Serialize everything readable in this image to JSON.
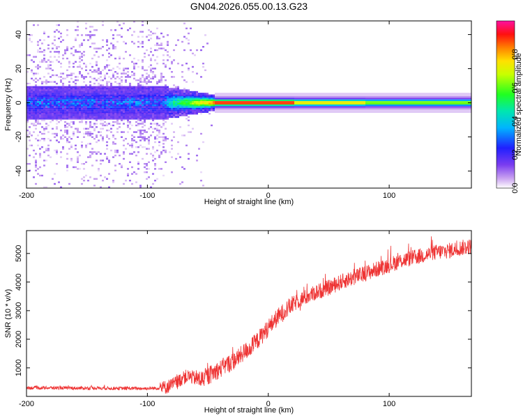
{
  "title": "GN04.2026.055.00.13.G23",
  "chart_data": [
    {
      "type": "heatmap",
      "title": "GN04.2026.055.00.13.G23",
      "xlabel": "Height of straight line (km)",
      "ylabel": "Frequency (Hz)",
      "xlim": [
        -200,
        168
      ],
      "ylim": [
        -50,
        48
      ],
      "x_ticks": [
        -200,
        -100,
        0,
        100
      ],
      "x_tick_labels": [
        "-200",
        "-100",
        "0",
        "100"
      ],
      "y_ticks": [
        -40,
        -20,
        0,
        20,
        40
      ],
      "y_tick_labels": [
        "-40",
        "-20",
        "0",
        "20",
        "40"
      ],
      "colorbar": {
        "label": "Normalized spectral amplitude",
        "range": [
          0,
          1
        ],
        "ticks": [
          0.0,
          0.2,
          0.4,
          0.6,
          0.8
        ],
        "tick_labels": [
          "0.0",
          "0.2",
          "0.4",
          "0.6",
          "0.8"
        ],
        "colormap": "rainbow (white-purple-blue-cyan-green-yellow-orange-red-magenta)"
      },
      "features": {
        "noise_region_x": [
          -200,
          -85
        ],
        "transition_x": [
          -85,
          -45
        ],
        "stable_signal_x": [
          -45,
          168
        ],
        "signal_center_hz": 0.5,
        "signal_halfwidth_hz_noise": 5,
        "signal_halfwidth_hz_stable": 2,
        "peak_amplitude_region_x": [
          -45,
          20
        ]
      }
    },
    {
      "type": "line",
      "xlabel": "Height of straight line (km)",
      "ylabel": "SNR (10 * v/v)",
      "xlim": [
        -200,
        168
      ],
      "ylim": [
        0,
        5800
      ],
      "x_ticks": [
        -200,
        -100,
        0,
        100
      ],
      "x_tick_labels": [
        "-200",
        "-100",
        "0",
        "100"
      ],
      "y_ticks": [
        1000,
        2000,
        3000,
        4000,
        5000
      ],
      "y_tick_labels": [
        "1000",
        "2000",
        "3000",
        "4000",
        "5000"
      ],
      "series": [
        {
          "name": "SNR",
          "color": "#ee3333",
          "x": [
            -200,
            -180,
            -160,
            -140,
            -120,
            -100,
            -90,
            -85,
            -80,
            -75,
            -70,
            -65,
            -60,
            -55,
            -50,
            -45,
            -40,
            -35,
            -30,
            -25,
            -20,
            -15,
            -10,
            -5,
            0,
            5,
            10,
            15,
            20,
            25,
            30,
            40,
            50,
            60,
            70,
            80,
            90,
            100,
            110,
            120,
            130,
            140,
            150,
            160,
            168
          ],
          "y": [
            300,
            300,
            290,
            290,
            280,
            280,
            290,
            320,
            400,
            500,
            680,
            700,
            620,
            600,
            700,
            850,
            950,
            1100,
            1200,
            1350,
            1550,
            1700,
            1900,
            2150,
            2400,
            2650,
            2850,
            3050,
            3200,
            3350,
            3450,
            3650,
            3800,
            4000,
            4150,
            4300,
            4450,
            4600,
            4750,
            4850,
            4950,
            5050,
            5100,
            5200,
            5250
          ]
        }
      ],
      "noise_amplitude": [
        {
          "x_from": -200,
          "x_to": -90,
          "amp": 60
        },
        {
          "x_from": -90,
          "x_to": -60,
          "amp": 250
        },
        {
          "x_from": -60,
          "x_to": 20,
          "amp": 320
        },
        {
          "x_from": 20,
          "x_to": 168,
          "amp": 280
        }
      ]
    }
  ]
}
